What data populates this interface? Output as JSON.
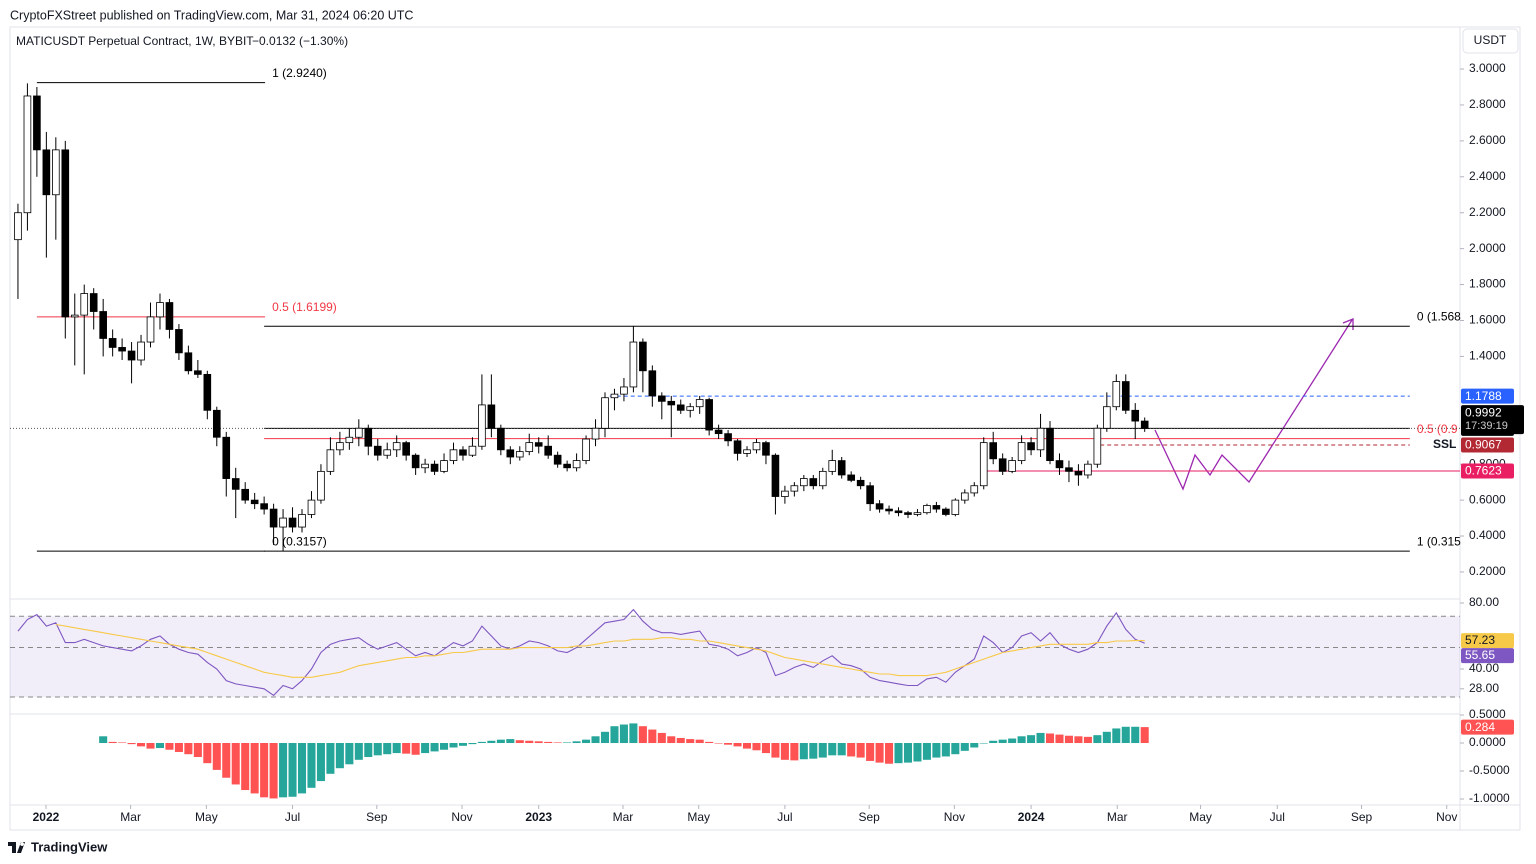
{
  "header": {
    "publisher": "CryptoFXStreet published on TradingView.com, Mar 31, 2024 06:20 UTC",
    "symbol": "MATICUSDT Perpetual Contract, 1W, BYBIT",
    "change": "−0.0132 (−1.30%)",
    "currency": "USDT",
    "countdown": "17:39:19",
    "brand": "TradingView"
  },
  "chart_data": [
    {
      "type": "candlestick",
      "up_color": "#ffffff",
      "down_color": "#000000",
      "xlim": [
        -0.84,
        152.3
      ],
      "xticks": [
        {
          "value": 2.96,
          "label": "2022"
        },
        {
          "value": 11.9,
          "label": "Mar"
        },
        {
          "value": 19.9,
          "label": "May"
        },
        {
          "value": 29.0,
          "label": "Jul"
        },
        {
          "value": 37.9,
          "label": "Sep"
        },
        {
          "value": 46.9,
          "label": "Nov"
        },
        {
          "value": 55.0,
          "label": "2023"
        },
        {
          "value": 63.9,
          "label": "Mar"
        },
        {
          "value": 71.9,
          "label": "May"
        },
        {
          "value": 81.0,
          "label": "Jul"
        },
        {
          "value": 89.9,
          "label": "Sep"
        },
        {
          "value": 98.9,
          "label": "Nov"
        },
        {
          "value": 107.0,
          "label": "2024"
        },
        {
          "value": 116.1,
          "label": "Mar"
        },
        {
          "value": 124.9,
          "label": "May"
        },
        {
          "value": 133.0,
          "label": "Jul"
        },
        {
          "value": 141.9,
          "label": "Sep"
        },
        {
          "value": 150.9,
          "label": "Nov"
        }
      ],
      "ylim": [
        0.055,
        3.234
      ],
      "yticks": [
        {
          "value": 3.0,
          "label": "3.0000"
        },
        {
          "value": 2.8,
          "label": "2.8000"
        },
        {
          "value": 2.6,
          "label": "2.6000"
        },
        {
          "value": 2.4,
          "label": "2.4000"
        },
        {
          "value": 2.2,
          "label": "2.2000"
        },
        {
          "value": 2.0,
          "label": "2.0000"
        },
        {
          "value": 1.8,
          "label": "1.8000"
        },
        {
          "value": 1.6,
          "label": "1.6000"
        },
        {
          "value": 1.4,
          "label": "1.4000"
        },
        {
          "value": 0.8,
          "label": "0.8000"
        },
        {
          "value": 0.6,
          "label": "0.6000"
        },
        {
          "value": 0.4,
          "label": "0.4000"
        },
        {
          "value": 0.2,
          "label": "0.2000"
        }
      ],
      "open": [
        2.05,
        2.2,
        2.85,
        2.55,
        2.3,
        2.55,
        1.62,
        1.63,
        1.75,
        1.65,
        1.5,
        1.45,
        1.43,
        1.38,
        1.48,
        1.62,
        1.7,
        1.55,
        1.42,
        1.32,
        1.3,
        1.1,
        0.95,
        0.72,
        0.66,
        0.6,
        0.58,
        0.55,
        0.45,
        0.5,
        0.45,
        0.52,
        0.6,
        0.76,
        0.88,
        0.92,
        0.95,
        1.0,
        0.9,
        0.85,
        0.88,
        0.92,
        0.85,
        0.78,
        0.8,
        0.76,
        0.82,
        0.88,
        0.85,
        0.9,
        1.13,
        1.0,
        0.88,
        0.84,
        0.87,
        0.92,
        0.9,
        0.85,
        0.8,
        0.78,
        0.82,
        0.94,
        1.0,
        1.17,
        1.19,
        1.23,
        1.48,
        1.32,
        1.18,
        1.15,
        1.13,
        1.1,
        1.12,
        1.16,
        0.99,
        0.97,
        0.93,
        0.86,
        0.88,
        0.92,
        0.85,
        0.62,
        0.65,
        0.68,
        0.72,
        0.68,
        0.76,
        0.82,
        0.74,
        0.71,
        0.68,
        0.58,
        0.55,
        0.54,
        0.53,
        0.52,
        0.53,
        0.57,
        0.55,
        0.52,
        0.6,
        0.64,
        0.68,
        0.92,
        0.83,
        0.76,
        0.82,
        0.92,
        0.88,
        1.0,
        0.82,
        0.78,
        0.76,
        0.74,
        0.8,
        1.0,
        1.12,
        1.26,
        1.1,
        1.04
      ],
      "high": [
        2.25,
        2.92,
        2.9,
        2.65,
        2.62,
        2.6,
        1.75,
        1.8,
        1.78,
        1.72,
        1.55,
        1.5,
        1.48,
        1.52,
        1.7,
        1.75,
        1.72,
        1.58,
        1.46,
        1.38,
        1.32,
        1.12,
        0.98,
        0.78,
        0.7,
        0.64,
        0.62,
        0.58,
        0.55,
        0.56,
        0.55,
        0.65,
        0.8,
        0.95,
        0.98,
        1.0,
        1.05,
        1.02,
        0.94,
        0.92,
        0.96,
        0.93,
        0.86,
        0.83,
        0.82,
        0.86,
        0.92,
        0.9,
        0.95,
        1.3,
        1.3,
        1.02,
        0.9,
        0.9,
        0.97,
        0.95,
        0.96,
        0.87,
        0.82,
        0.86,
        0.96,
        1.05,
        1.2,
        1.22,
        1.28,
        1.57,
        1.5,
        1.35,
        1.2,
        1.18,
        1.16,
        1.14,
        1.18,
        1.17,
        1.02,
        0.99,
        0.94,
        0.9,
        0.94,
        0.93,
        0.86,
        0.68,
        0.7,
        0.74,
        0.74,
        0.78,
        0.88,
        0.84,
        0.76,
        0.73,
        0.7,
        0.6,
        0.57,
        0.56,
        0.54,
        0.55,
        0.58,
        0.59,
        0.56,
        0.61,
        0.66,
        0.7,
        0.95,
        0.98,
        0.86,
        0.84,
        0.96,
        0.95,
        1.08,
        1.04,
        0.86,
        0.82,
        0.8,
        0.82,
        1.02,
        1.2,
        1.3,
        1.3,
        1.14,
        1.06
      ],
      "low": [
        1.72,
        2.1,
        2.4,
        1.95,
        2.05,
        1.5,
        1.35,
        1.3,
        1.55,
        1.4,
        1.4,
        1.38,
        1.25,
        1.35,
        1.45,
        1.55,
        1.5,
        1.38,
        1.3,
        1.28,
        1.05,
        0.9,
        0.62,
        0.5,
        0.58,
        0.55,
        0.52,
        0.35,
        0.3157,
        0.42,
        0.42,
        0.5,
        0.58,
        0.74,
        0.85,
        0.88,
        0.9,
        0.85,
        0.82,
        0.83,
        0.84,
        0.82,
        0.74,
        0.75,
        0.74,
        0.75,
        0.8,
        0.82,
        0.84,
        0.88,
        0.95,
        0.85,
        0.8,
        0.82,
        0.85,
        0.86,
        0.83,
        0.78,
        0.76,
        0.76,
        0.8,
        0.9,
        0.95,
        1.1,
        1.15,
        1.2,
        1.2,
        1.12,
        1.05,
        0.95,
        1.08,
        1.06,
        1.08,
        0.96,
        0.94,
        0.9,
        0.82,
        0.84,
        0.86,
        0.8,
        0.52,
        0.58,
        0.62,
        0.65,
        0.66,
        0.66,
        0.74,
        0.72,
        0.7,
        0.66,
        0.54,
        0.53,
        0.52,
        0.51,
        0.5,
        0.51,
        0.52,
        0.53,
        0.51,
        0.51,
        0.58,
        0.62,
        0.66,
        0.8,
        0.74,
        0.75,
        0.8,
        0.85,
        0.84,
        0.8,
        0.74,
        0.7,
        0.68,
        0.72,
        0.78,
        0.98,
        1.1,
        1.08,
        0.94,
        0.98
      ],
      "close": [
        2.2,
        2.85,
        2.55,
        2.3,
        2.55,
        1.62,
        1.63,
        1.75,
        1.65,
        1.5,
        1.45,
        1.43,
        1.38,
        1.48,
        1.62,
        1.7,
        1.55,
        1.42,
        1.32,
        1.3,
        1.1,
        0.95,
        0.72,
        0.66,
        0.6,
        0.58,
        0.55,
        0.45,
        0.5,
        0.45,
        0.52,
        0.6,
        0.76,
        0.88,
        0.92,
        0.95,
        1.0,
        0.9,
        0.85,
        0.88,
        0.92,
        0.85,
        0.78,
        0.8,
        0.76,
        0.82,
        0.88,
        0.85,
        0.9,
        1.13,
        1.0,
        0.88,
        0.84,
        0.87,
        0.92,
        0.9,
        0.85,
        0.8,
        0.78,
        0.82,
        0.94,
        1.0,
        1.17,
        1.19,
        1.23,
        1.48,
        1.32,
        1.18,
        1.15,
        1.13,
        1.1,
        1.12,
        1.16,
        0.99,
        0.97,
        0.93,
        0.86,
        0.88,
        0.92,
        0.85,
        0.62,
        0.65,
        0.68,
        0.72,
        0.68,
        0.76,
        0.82,
        0.74,
        0.71,
        0.68,
        0.58,
        0.55,
        0.54,
        0.53,
        0.52,
        0.53,
        0.57,
        0.55,
        0.52,
        0.6,
        0.64,
        0.68,
        0.92,
        0.83,
        0.76,
        0.82,
        0.92,
        0.88,
        1.0,
        0.82,
        0.78,
        0.76,
        0.74,
        0.8,
        1.0,
        1.12,
        1.26,
        1.1,
        1.04,
        0.9992
      ],
      "levels": [
        {
          "label": "1 (2.9240)",
          "value": 2.924,
          "color": "#000000",
          "x": [
            2.0,
            26.1
          ]
        },
        {
          "label": "0.5 (1.6199)",
          "value": 1.6199,
          "color": "#f23645",
          "x": [
            2.0,
            26.1
          ]
        },
        {
          "label": "0 (0.3157)",
          "value": 0.3157,
          "color": "#000000",
          "x": [
            2.0,
            26.1
          ]
        },
        {
          "label": "0 (1.568",
          "value": 1.568,
          "color": "#000000",
          "x": [
            26.0,
            147.0
          ]
        },
        {
          "label": "0.5 (0.9",
          "value": 0.942,
          "color": "#f23645",
          "x": [
            26.0,
            147.0
          ]
        },
        {
          "label": "1 (0.315",
          "value": 0.3157,
          "color": "#000000",
          "x": [
            26.0,
            147.0
          ]
        },
        {
          "value": 1.1788,
          "color": "#2962ff",
          "dash": true,
          "tag": true,
          "x": [
            62.5,
            147.0
          ]
        },
        {
          "value": 0.9992,
          "color": "#000000",
          "tag": true,
          "x": [
            26.0,
            147.0
          ]
        },
        {
          "name": "SSL",
          "value": 0.9067,
          "color": "#b22833",
          "dash": true,
          "tag": true,
          "x": [
            114.3,
            147.0
          ]
        },
        {
          "value": 0.7623,
          "color": "#e91e63",
          "tag": true,
          "x": [
            102.1,
            152.3
          ]
        }
      ]
    },
    {
      "type": "line",
      "ylim": [
        12.73,
        81.82
      ],
      "yticks": [
        {
          "value": 80,
          "label": "80.00"
        },
        {
          "value": 40,
          "label": "40.00"
        },
        {
          "value": 28,
          "label": "28.00"
        }
      ],
      "bands": [
        72,
        53,
        23
      ],
      "band_color": "#7e57c2",
      "series": [
        {
          "color": "#7e57c2",
          "values": [
            63,
            70,
            73,
            66,
            68,
            56,
            56,
            58,
            56,
            54,
            53,
            52,
            51,
            54,
            58,
            60,
            55,
            52,
            50,
            49,
            44,
            40,
            33,
            31,
            30,
            29,
            28,
            24,
            30,
            28,
            33,
            40,
            50,
            55,
            57,
            58,
            59,
            55,
            52,
            54,
            56,
            52,
            48,
            50,
            48,
            52,
            56,
            54,
            57,
            66,
            60,
            54,
            52,
            54,
            57,
            56,
            54,
            51,
            50,
            53,
            58,
            63,
            68,
            69,
            70,
            76,
            69,
            64,
            62,
            62,
            61,
            62,
            63,
            55,
            54,
            52,
            48,
            50,
            53,
            50,
            36,
            38,
            41,
            43,
            41,
            45,
            48,
            43,
            42,
            40,
            35,
            33,
            32,
            31,
            30,
            30,
            34,
            35,
            32,
            38,
            42,
            46,
            60,
            56,
            50,
            53,
            60,
            62,
            57,
            62,
            55,
            52,
            50,
            52,
            56,
            66,
            74,
            64,
            58,
            55.65
          ]
        },
        {
          "color": "#f7c948",
          "values": [
            null,
            null,
            null,
            null,
            67,
            66,
            65,
            64,
            63,
            62,
            61,
            60,
            59,
            58,
            57,
            56,
            55,
            54,
            53,
            52,
            50,
            48,
            46,
            44,
            42,
            40,
            38,
            37,
            36,
            35,
            35,
            35,
            36,
            37,
            38,
            40,
            42,
            43,
            44,
            45,
            46,
            47,
            47,
            48,
            48,
            49,
            50,
            50,
            51,
            52,
            52,
            52,
            52,
            53,
            53,
            53,
            53,
            53,
            53,
            54,
            54,
            55,
            56,
            57,
            57,
            58,
            58,
            58,
            59,
            59,
            58,
            58,
            57,
            57,
            56,
            55,
            54,
            53,
            52,
            51,
            49,
            47,
            46,
            45,
            44,
            43,
            42,
            41,
            40,
            39,
            38,
            37,
            37,
            36,
            36,
            36,
            36,
            37,
            38,
            40,
            42,
            44,
            46,
            48,
            50,
            51,
            52,
            53,
            54,
            55,
            55,
            55,
            55,
            55,
            56,
            56,
            57,
            57,
            57.2,
            57.23
          ]
        }
      ]
    },
    {
      "type": "bar",
      "ylim": [
        -1.107,
        0.518
      ],
      "yticks": [
        {
          "value": 0.5,
          "label": "0.5000"
        },
        {
          "value": 0,
          "label": "0.0000"
        },
        {
          "value": -0.5,
          "label": "-0.5000"
        },
        {
          "value": -1,
          "label": "-1.0000"
        }
      ],
      "rising_color": "#26a69a",
      "falling_color": "#ff5252",
      "values": [
        null,
        null,
        null,
        null,
        null,
        null,
        null,
        null,
        null,
        0.12,
        0.02,
        0.01,
        -0.02,
        -0.06,
        -0.1,
        -0.09,
        -0.12,
        -0.16,
        -0.2,
        -0.25,
        -0.36,
        -0.48,
        -0.62,
        -0.74,
        -0.84,
        -0.9,
        -0.97,
        -0.99,
        -0.97,
        -0.96,
        -0.9,
        -0.8,
        -0.68,
        -0.55,
        -0.45,
        -0.38,
        -0.3,
        -0.25,
        -0.22,
        -0.2,
        -0.18,
        -0.19,
        -0.21,
        -0.18,
        -0.15,
        -0.12,
        -0.08,
        -0.05,
        -0.02,
        0.02,
        0.04,
        0.06,
        0.07,
        0.05,
        0.04,
        0.03,
        0.02,
        0.01,
        0.01,
        0.03,
        0.06,
        0.12,
        0.2,
        0.3,
        0.33,
        0.35,
        0.3,
        0.24,
        0.18,
        0.12,
        0.09,
        0.07,
        0.06,
        0.02,
        0.0,
        -0.03,
        -0.06,
        -0.1,
        -0.13,
        -0.18,
        -0.26,
        -0.3,
        -0.31,
        -0.29,
        -0.28,
        -0.26,
        -0.22,
        -0.22,
        -0.24,
        -0.26,
        -0.32,
        -0.35,
        -0.37,
        -0.36,
        -0.35,
        -0.33,
        -0.3,
        -0.26,
        -0.24,
        -0.2,
        -0.14,
        -0.08,
        0.0,
        0.04,
        0.06,
        0.08,
        0.12,
        0.14,
        0.18,
        0.17,
        0.15,
        0.13,
        0.12,
        0.11,
        0.14,
        0.2,
        0.26,
        0.29,
        0.29,
        0.284
      ]
    }
  ]
}
